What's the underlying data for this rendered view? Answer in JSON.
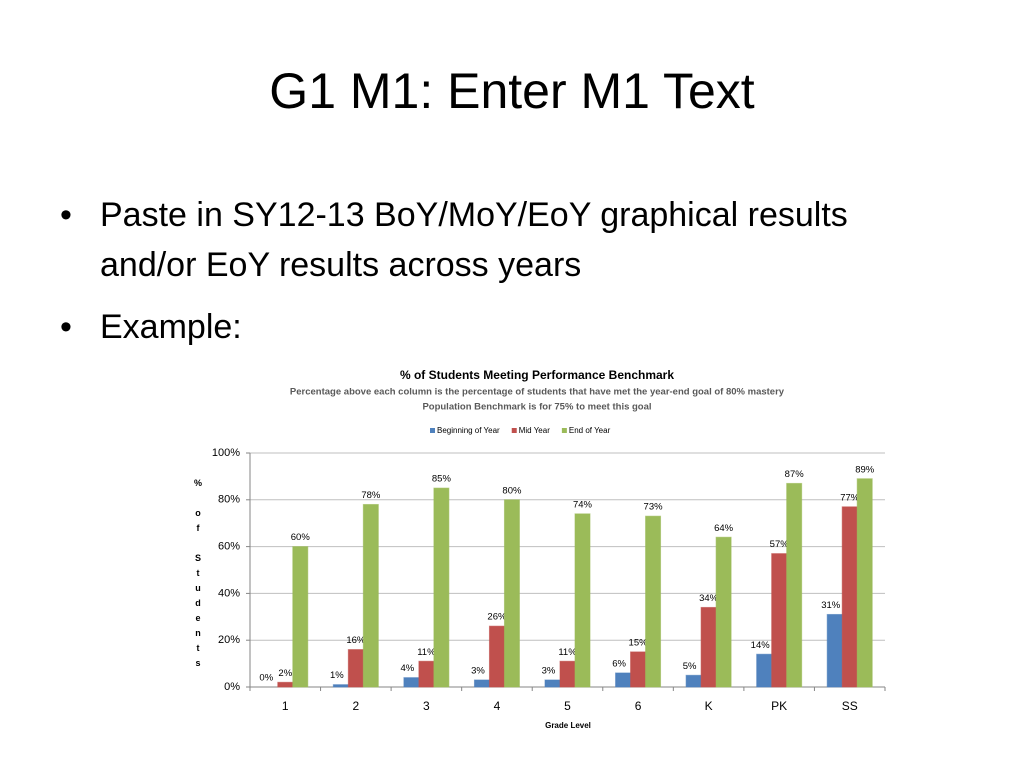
{
  "title": "G1 M1: Enter M1 Text",
  "bullets": [
    "Paste in SY12-13 BoY/MoY/EoY graphical results and/or EoY results across years",
    "Example:"
  ],
  "chart_data": {
    "type": "bar",
    "title": "% of Students Meeting Performance Benchmark",
    "subtitle": [
      "Percentage above each column is the percentage of students that have met the year-end goal of 80% mastery",
      "Population Benchmark is for 75% to meet this goal"
    ],
    "x_label": "Grade Level",
    "y_label": "% of Students",
    "categories": [
      "1",
      "2",
      "3",
      "4",
      "5",
      "6",
      "K",
      "PK",
      "SS"
    ],
    "series": [
      {
        "name": "Beginning of Year",
        "color": "#4f81bd",
        "values": [
          0,
          1,
          4,
          3,
          3,
          6,
          5,
          14,
          31
        ],
        "value_labels": [
          "0%",
          "1%",
          "4%",
          "3%",
          "3%",
          "6%",
          "5%",
          "14%",
          "31%"
        ]
      },
      {
        "name": "Mid Year",
        "color": "#c0504d",
        "values": [
          2,
          16,
          11,
          26,
          11,
          15,
          34,
          57,
          77
        ],
        "value_labels": [
          "2%",
          "16%",
          "11%",
          "26%",
          "11%",
          "15%",
          "34%",
          "57%",
          "77%"
        ]
      },
      {
        "name": "End of Year",
        "color": "#9bbb59",
        "values": [
          60,
          78,
          85,
          80,
          74,
          73,
          64,
          87,
          89
        ],
        "value_labels": [
          "60%",
          "78%",
          "85%",
          "80%",
          "74%",
          "73%",
          "64%",
          "87%",
          "89%"
        ]
      }
    ],
    "ylim": [
      0,
      100
    ],
    "yticks": [
      {
        "value": 0,
        "label": "0%"
      },
      {
        "value": 20,
        "label": "20%"
      },
      {
        "value": 40,
        "label": "40%"
      },
      {
        "value": 60,
        "label": "60%"
      },
      {
        "value": 80,
        "label": "80%"
      },
      {
        "value": 100,
        "label": "100%"
      }
    ],
    "grid": true,
    "legend": "top"
  }
}
